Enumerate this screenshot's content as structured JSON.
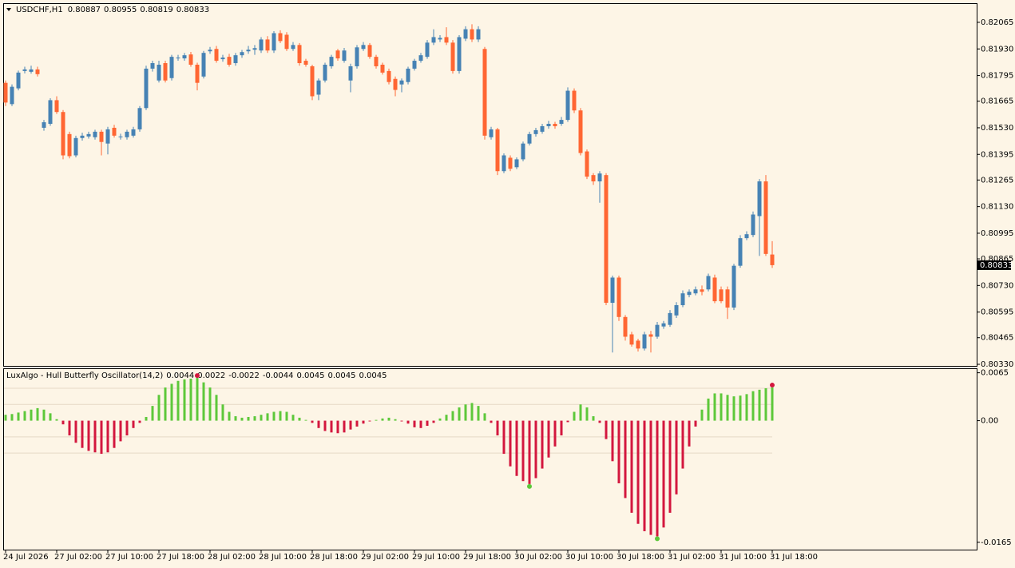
{
  "chart_data": [
    {
      "type": "candlestick",
      "title": "USDCHF,H1",
      "up_color": "#4682b4",
      "down_color": "#ff6633",
      "categories": [
        "24 Jul 2026",
        null,
        null,
        null,
        null,
        null,
        null,
        null,
        "27 Jul 02:00",
        null,
        null,
        null,
        null,
        null,
        null,
        null,
        "27 Jul 10:00",
        null,
        null,
        null,
        null,
        null,
        null,
        null,
        "27 Jul 18:00",
        null,
        null,
        null,
        null,
        null,
        null,
        null,
        "28 Jul 02:00",
        null,
        null,
        null,
        null,
        null,
        null,
        null,
        "28 Jul 10:00",
        null,
        null,
        null,
        null,
        null,
        null,
        null,
        "28 Jul 18:00",
        null,
        null,
        null,
        null,
        null,
        null,
        null,
        "29 Jul 02:00",
        null,
        null,
        null,
        null,
        null,
        null,
        null,
        "29 Jul 10:00",
        null,
        null,
        null,
        null,
        null,
        null,
        null,
        "29 Jul 18:00",
        null,
        null,
        null,
        null,
        null,
        null,
        null,
        "30 Jul 02:00",
        null,
        null,
        null,
        null,
        null,
        null,
        null,
        "30 Jul 10:00",
        null,
        null,
        null,
        null,
        null,
        null,
        null,
        "30 Jul 18:00",
        null,
        null,
        null,
        null,
        null,
        null,
        null,
        "31 Jul 02:00",
        null,
        null,
        null,
        null,
        null,
        null,
        null,
        "31 Jul 10:00",
        null,
        null,
        null,
        null,
        null,
        null,
        null,
        "31 Jul 18:00"
      ],
      "open": [
        0.81758,
        0.8165,
        0.8173,
        0.81818,
        0.81814,
        0.81826,
        0.8153,
        0.8155,
        0.8167,
        0.8161,
        0.81498,
        0.8139,
        0.81478,
        0.81486,
        0.81482,
        0.8151,
        0.8145,
        0.8153,
        0.81482,
        0.81482,
        0.8149,
        0.81522,
        0.8163,
        0.8183,
        0.8177,
        0.81858,
        0.81782,
        0.81882,
        0.81882,
        0.81902,
        0.8185,
        0.8179,
        0.81918,
        0.8193,
        0.81878,
        0.8189,
        0.81858,
        0.81898,
        0.81918,
        0.81926,
        0.81922,
        0.81978,
        0.81922,
        0.8201,
        0.82002,
        0.8193,
        0.8195,
        0.8187,
        0.81842,
        0.81698,
        0.8177,
        0.81842,
        0.81922,
        0.8187,
        0.8177,
        0.81842,
        0.8193,
        0.8195,
        0.8189,
        0.8185,
        0.81818,
        0.81778,
        0.8175,
        0.81762,
        0.8183,
        0.8187,
        0.8189,
        0.81962,
        0.81978,
        0.8199,
        0.81962,
        0.81818,
        0.81982,
        0.8203,
        0.81978,
        0.8193,
        0.81482,
        0.81522,
        0.8131,
        0.81378,
        0.8133,
        0.8137,
        0.8145,
        0.81498,
        0.8151,
        0.81538,
        0.8155,
        0.8155,
        0.8157,
        0.81718,
        0.81618,
        0.8141,
        0.8129,
        0.81258,
        0.8129,
        0.80642,
        0.8077,
        0.8057,
        0.80482,
        0.8045,
        0.8041,
        0.80482,
        0.8047,
        0.80522,
        0.8053,
        0.80578,
        0.8063,
        0.80682,
        0.8069,
        0.8071,
        0.8071,
        0.8077,
        0.8071,
        0.8071,
        0.80618,
        0.8083,
        0.8097,
        0.80986,
        0.81082,
        0.81258,
        0.80887
      ],
      "high": [
        0.8177,
        0.8175,
        0.8182,
        0.8184,
        0.81845,
        0.8184,
        0.8157,
        0.8168,
        0.8169,
        0.8162,
        0.8151,
        0.8149,
        0.81505,
        0.8151,
        0.8152,
        0.8152,
        0.81535,
        0.81545,
        0.815,
        0.8152,
        0.81535,
        0.8164,
        0.81845,
        0.8187,
        0.8187,
        0.8187,
        0.819,
        0.819,
        0.8191,
        0.81915,
        0.8186,
        0.8192,
        0.8194,
        0.81945,
        0.819,
        0.81905,
        0.8191,
        0.81925,
        0.81945,
        0.8195,
        0.8199,
        0.81995,
        0.8202,
        0.82025,
        0.82015,
        0.81965,
        0.8196,
        0.8188,
        0.8185,
        0.8178,
        0.8186,
        0.819,
        0.8193,
        0.81935,
        0.81855,
        0.8195,
        0.81965,
        0.8196,
        0.819,
        0.8186,
        0.8183,
        0.8179,
        0.8178,
        0.8184,
        0.8188,
        0.8191,
        0.81975,
        0.8203,
        0.82,
        0.8204,
        0.81975,
        0.82,
        0.82045,
        0.82055,
        0.82045,
        0.8194,
        0.81535,
        0.8153,
        0.814,
        0.8139,
        0.8138,
        0.8146,
        0.8151,
        0.8153,
        0.8155,
        0.81565,
        0.8156,
        0.81585,
        0.81735,
        0.8173,
        0.8163,
        0.8142,
        0.813,
        0.8131,
        0.813,
        0.8078,
        0.8078,
        0.8058,
        0.80495,
        0.8046,
        0.80495,
        0.805,
        0.80545,
        0.8055,
        0.80605,
        0.80645,
        0.80705,
        0.8071,
        0.80725,
        0.8073,
        0.8079,
        0.80785,
        0.80725,
        0.80725,
        0.8084,
        0.80985,
        0.81005,
        0.81105,
        0.8127,
        0.8129,
        0.80955
      ],
      "low": [
        0.8164,
        0.8164,
        0.8172,
        0.81806,
        0.81805,
        0.8179,
        0.81515,
        0.8154,
        0.816,
        0.8137,
        0.81375,
        0.8138,
        0.81465,
        0.81475,
        0.8147,
        0.8139,
        0.81395,
        0.8148,
        0.8147,
        0.8147,
        0.8148,
        0.8151,
        0.8162,
        0.81815,
        0.8176,
        0.8176,
        0.8177,
        0.8187,
        0.8187,
        0.8184,
        0.8172,
        0.8178,
        0.81905,
        0.8186,
        0.81865,
        0.8184,
        0.81845,
        0.81885,
        0.81905,
        0.819,
        0.8191,
        0.8191,
        0.8191,
        0.8196,
        0.8192,
        0.8192,
        0.81845,
        0.8184,
        0.8167,
        0.8167,
        0.8176,
        0.8183,
        0.8187,
        0.8186,
        0.8171,
        0.8183,
        0.8192,
        0.8188,
        0.8183,
        0.818,
        0.8175,
        0.8169,
        0.8171,
        0.8175,
        0.8182,
        0.8186,
        0.8188,
        0.8195,
        0.81965,
        0.8195,
        0.81805,
        0.81805,
        0.8197,
        0.81965,
        0.81965,
        0.8147,
        0.8147,
        0.8129,
        0.813,
        0.8131,
        0.8132,
        0.8136,
        0.8144,
        0.81485,
        0.815,
        0.81525,
        0.81525,
        0.8154,
        0.8156,
        0.81605,
        0.8139,
        0.8127,
        0.8124,
        0.8115,
        0.8063,
        0.8039,
        0.8055,
        0.8045,
        0.8042,
        0.80395,
        0.804,
        0.8039,
        0.8046,
        0.8051,
        0.8052,
        0.80565,
        0.8062,
        0.8067,
        0.8068,
        0.8068,
        0.807,
        0.8064,
        0.8064,
        0.8056,
        0.80605,
        0.8082,
        0.8096,
        0.80975,
        0.8088,
        0.8088,
        0.80819
      ],
      "close": [
        0.81658,
        0.81738,
        0.8181,
        0.81826,
        0.81826,
        0.81802,
        0.81558,
        0.8167,
        0.8161,
        0.8139,
        0.81386,
        0.81478,
        0.8149,
        0.81498,
        0.8151,
        0.81458,
        0.81522,
        0.8149,
        0.81486,
        0.8151,
        0.81522,
        0.8163,
        0.8183,
        0.81858,
        0.8185,
        0.8177,
        0.8189,
        0.81886,
        0.81898,
        0.8185,
        0.81758,
        0.8191,
        0.81926,
        0.8187,
        0.81886,
        0.8185,
        0.81898,
        0.81914,
        0.81926,
        0.81934,
        0.81978,
        0.81922,
        0.8201,
        0.8197,
        0.8193,
        0.8195,
        0.81858,
        0.8185,
        0.8169,
        0.8177,
        0.8185,
        0.8189,
        0.81882,
        0.81922,
        0.81842,
        0.81938,
        0.8195,
        0.8189,
        0.81842,
        0.8181,
        0.81762,
        0.81722,
        0.8177,
        0.8183,
        0.8187,
        0.81898,
        0.81962,
        0.8199,
        0.81986,
        0.81962,
        0.81818,
        0.8199,
        0.8203,
        0.81978,
        0.8203,
        0.8149,
        0.81522,
        0.8131,
        0.8139,
        0.81322,
        0.8137,
        0.8145,
        0.81498,
        0.81518,
        0.81538,
        0.8155,
        0.81538,
        0.8157,
        0.81718,
        0.81618,
        0.81402,
        0.81282,
        0.81258,
        0.81298,
        0.80642,
        0.8077,
        0.8057,
        0.8047,
        0.8043,
        0.8041,
        0.80482,
        0.8047,
        0.8053,
        0.80538,
        0.8059,
        0.8063,
        0.8069,
        0.80698,
        0.8071,
        0.80698,
        0.80778,
        0.8065,
        0.8065,
        0.80618,
        0.8083,
        0.8097,
        0.8099,
        0.8109,
        0.81258,
        0.8089,
        0.80833
      ],
      "ylim": [
        0.80322,
        0.82158
      ],
      "yticks": [
        0.82065,
        {
          "value": 0.8193,
          "label": "0.81930"
        },
        0.81795,
        0.81665,
        {
          "value": 0.8153,
          "label": "0.81530"
        },
        0.81395,
        0.81265,
        {
          "value": 0.8113,
          "label": "0.81130"
        },
        0.80995,
        0.80865,
        {
          "value": 0.8073,
          "label": "0.80730"
        },
        0.80595,
        0.80465,
        {
          "value": 0.8033,
          "label": "0.80330"
        }
      ]
    },
    {
      "type": "bar",
      "title": "LuxAlgo - Hull Butterfly Oscillator(14,2)",
      "positive_color": "#5dc83a",
      "negative_color": "#d3173e",
      "level_color": "#e6d9c6",
      "levels": [
        0.0044,
        0.0022,
        -0.0022,
        -0.0044
      ],
      "current_values": [
        0.0045,
        0.0045,
        0.0045
      ],
      "values": [
        0.0008,
        0.0009,
        0.0011,
        0.0013,
        0.0015,
        0.0017,
        0.0015,
        0.001,
        0.0002,
        -0.0005,
        -0.002,
        -0.003,
        -0.0037,
        -0.0041,
        -0.0043,
        -0.0045,
        -0.0043,
        -0.0037,
        -0.0028,
        -0.002,
        -0.001,
        -0.0003,
        0.0005,
        0.002,
        0.0035,
        0.0045,
        0.005,
        0.0054,
        0.0056,
        0.0057,
        0.0058,
        0.0052,
        0.0045,
        0.0035,
        0.0022,
        0.0012,
        0.0006,
        0.0004,
        0.0005,
        0.0006,
        0.0008,
        0.001,
        0.0012,
        0.0013,
        0.0012,
        0.0008,
        0.0004,
        0.0001,
        -0.0003,
        -0.001,
        -0.0014,
        -0.0016,
        -0.0017,
        -0.0016,
        -0.0012,
        -0.0008,
        -0.0004,
        -0.0001,
        0.0001,
        0.0003,
        0.0004,
        0.0002,
        -0.0001,
        -0.0004,
        -0.0009,
        -0.001,
        -0.0007,
        -0.0003,
        0.0003,
        0.0008,
        0.0013,
        0.0018,
        0.0022,
        0.0024,
        0.002,
        0.001,
        -0.0003,
        -0.002,
        -0.0045,
        -0.0062,
        -0.0075,
        -0.0082,
        -0.0086,
        -0.0078,
        -0.0065,
        -0.005,
        -0.0035,
        -0.002,
        -0.0002,
        0.0012,
        0.0022,
        0.0018,
        0.0006,
        -0.0003,
        -0.0025,
        -0.0055,
        -0.0085,
        -0.0105,
        -0.0125,
        -0.014,
        -0.015,
        -0.0155,
        -0.0157,
        -0.0145,
        -0.0125,
        -0.01,
        -0.0065,
        -0.0035,
        -0.0008,
        0.0015,
        0.003,
        0.0037,
        0.0037,
        0.0035,
        0.0033,
        0.0034,
        0.0036,
        0.004,
        0.0042,
        0.0044,
        0.0045
      ],
      "markers": [
        {
          "index": 30,
          "color": "#d3173e"
        },
        {
          "index": 82,
          "color": "#5dc83a"
        },
        {
          "index": 102,
          "color": "#5dc83a"
        },
        {
          "index": 120,
          "color": "#d3173e"
        }
      ],
      "ylim": [
        -0.0175,
        0.007
      ],
      "yticks": [
        0.0065,
        {
          "value": 0,
          "label": "0.00"
        },
        -0.0165
      ]
    }
  ]
}
